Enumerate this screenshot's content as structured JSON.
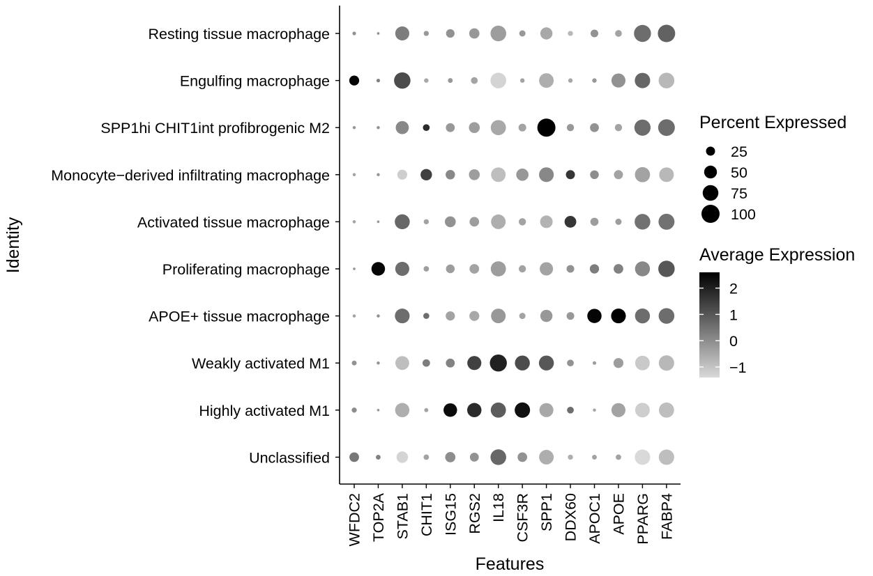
{
  "chart_data": {
    "type": "dotplot",
    "xlabel": "Features",
    "ylabel": "Identity",
    "features": [
      "WFDC2",
      "TOP2A",
      "STAB1",
      "CHIT1",
      "ISG15",
      "RGS2",
      "IL18",
      "CSF3R",
      "SPP1",
      "DDX60",
      "APOC1",
      "APOE",
      "PPARG",
      "FABP4"
    ],
    "identities": [
      "Resting tissue macrophage",
      "Engulfing macrophage",
      "SPP1hi CHIT1int profibrogenic M2",
      "Monocyte−derived infiltrating macrophage",
      "Activated tissue macrophage",
      "Proliferating macrophage",
      "APOE+ tissue macrophage",
      "Weakly activated M1",
      "Highly activated M1",
      "Unclassified"
    ],
    "percent_expressed": [
      [
        4,
        2,
        60,
        8,
        22,
        32,
        75,
        12,
        45,
        8,
        18,
        14,
        88,
        92
      ],
      [
        30,
        4,
        82,
        6,
        7,
        14,
        75,
        6,
        65,
        6,
        6,
        60,
        72,
        75
      ],
      [
        3,
        3,
        52,
        14,
        24,
        36,
        70,
        18,
        100,
        16,
        24,
        16,
        80,
        85
      ],
      [
        3,
        3,
        30,
        40,
        27,
        36,
        65,
        46,
        66,
        25,
        23,
        25,
        70,
        65
      ],
      [
        3,
        2,
        68,
        8,
        36,
        28,
        65,
        16,
        48,
        42,
        20,
        12,
        75,
        78
      ],
      [
        2,
        56,
        60,
        9,
        23,
        28,
        70,
        16,
        54,
        18,
        26,
        28,
        68,
        82
      ],
      [
        3,
        3,
        66,
        11,
        26,
        30,
        65,
        12,
        45,
        18,
        62,
        66,
        68,
        75
      ],
      [
        7,
        3,
        58,
        17,
        24,
        60,
        88,
        68,
        68,
        14,
        4,
        30,
        65,
        72
      ],
      [
        8,
        2,
        62,
        5,
        56,
        62,
        70,
        72,
        60,
        14,
        3,
        60,
        65,
        70
      ],
      [
        28,
        7,
        40,
        9,
        32,
        24,
        75,
        28,
        65,
        8,
        7,
        9,
        72,
        72
      ]
    ],
    "average_expression": [
      [
        -0.1,
        -0.1,
        0.3,
        -0.2,
        -0.1,
        -0.2,
        -0.3,
        -0.2,
        -0.5,
        -0.8,
        -0.1,
        -0.4,
        0.6,
        0.8
      ],
      [
        2.5,
        0.2,
        1.2,
        -0.5,
        -0.2,
        -0.4,
        -1.3,
        -0.4,
        -0.6,
        -0.5,
        -0.2,
        -0.1,
        0.7,
        -0.8
      ],
      [
        -0.2,
        -0.1,
        0.1,
        1.8,
        -0.2,
        -0.3,
        -0.5,
        -0.4,
        2.6,
        -0.2,
        -0.1,
        -0.4,
        0.6,
        0.6
      ],
      [
        -0.4,
        -0.2,
        -1.2,
        1.4,
        0.1,
        -0.3,
        -0.9,
        -0.2,
        0.1,
        1.6,
        0.0,
        -0.4,
        -0.4,
        -0.8
      ],
      [
        -0.4,
        -0.2,
        0.7,
        -0.4,
        -0.1,
        -0.3,
        -0.6,
        -0.4,
        -0.7,
        1.6,
        -0.3,
        -0.3,
        0.5,
        0.5
      ],
      [
        -0.2,
        2.5,
        0.6,
        -0.3,
        -0.3,
        -0.4,
        -0.3,
        -0.4,
        -0.4,
        -0.1,
        0.3,
        0.2,
        0.1,
        1.0
      ],
      [
        -0.4,
        -0.1,
        0.6,
        0.6,
        -0.4,
        -0.5,
        -0.2,
        -0.4,
        -0.2,
        -0.2,
        2.5,
        2.6,
        0.6,
        0.6
      ],
      [
        -0.1,
        -0.1,
        -0.9,
        0.3,
        0.2,
        1.4,
        2.0,
        1.2,
        1.0,
        -0.1,
        -0.3,
        -0.3,
        -1.1,
        -0.8
      ],
      [
        0.0,
        -0.2,
        -0.6,
        -0.4,
        2.4,
        1.8,
        0.9,
        2.3,
        -0.5,
        0.6,
        -0.4,
        -0.4,
        -1.2,
        -0.9
      ],
      [
        0.4,
        0.2,
        -1.3,
        -0.4,
        0.0,
        -0.1,
        0.7,
        -0.1,
        -0.6,
        -0.6,
        -0.4,
        -0.4,
        -1.4,
        -0.9
      ]
    ],
    "size_legend": {
      "title": "Percent Expressed",
      "values": [
        25,
        50,
        75,
        100
      ],
      "labels": [
        "25",
        "50",
        "75",
        "100"
      ]
    },
    "color_legend": {
      "title": "Average Expression",
      "range": [
        -1.4,
        2.6
      ],
      "ticks": [
        2,
        1,
        0,
        -1
      ],
      "tick_labels": [
        "2",
        "1",
        "0",
        "−1"
      ],
      "low_color": "#d9d9d9",
      "high_color": "#000000"
    },
    "grid": false
  }
}
